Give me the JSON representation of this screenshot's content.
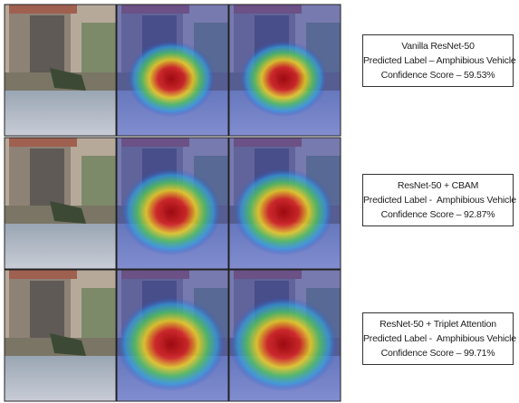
{
  "rows": [
    {
      "model": "Vanilla ResNet-50",
      "label": "Predicted Label – Amphibious Vehicle",
      "score": "Confidence Score – 59.53%"
    },
    {
      "model": "ResNet-50 + CBAM",
      "label": "Predicted Label -  Amphibious Vehicle",
      "score": "Confidence Score – 92.87%"
    },
    {
      "model": "ResNet-50 + Triplet Attention",
      "label": "Predicted Label -  Amphibious Vehicle",
      "score": "Confidence Score – 99.71%"
    }
  ]
}
